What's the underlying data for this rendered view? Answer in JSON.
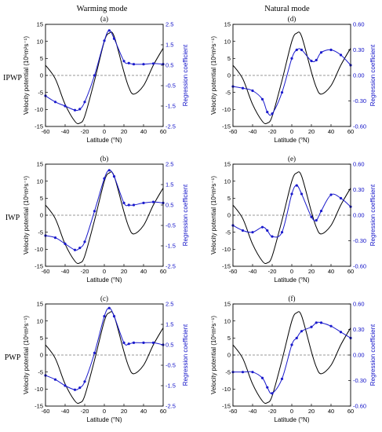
{
  "column_titles": [
    "Warming mode",
    "Natural mode"
  ],
  "row_titles": [
    "IPWP",
    "IWP",
    "PWP"
  ],
  "colors": {
    "black_series": "#000000",
    "blue_series": "#1a1acc",
    "zero_line": "#777777"
  },
  "chart_data": [
    {
      "type": "line",
      "panel_label": "(a)",
      "xlabel": "Latitude (°N)",
      "ylabel": "Velocity potential (10⁶m²s⁻¹)",
      "y2label": "Regression coefficient",
      "xlim": [
        -60,
        60
      ],
      "ylim": [
        -15,
        15
      ],
      "y2lim": [
        -2.5,
        2.5
      ],
      "xticks": [
        -60,
        -40,
        -20,
        0,
        20,
        40,
        60
      ],
      "yticks": [
        -15,
        -10,
        -5,
        0,
        5,
        10,
        15
      ],
      "y2ticks": [
        "-2.5",
        "-1.5",
        "-0.5",
        "0.5",
        "1.5",
        "2.5"
      ],
      "x": [
        -60,
        -50,
        -40,
        -30,
        -25,
        -20,
        -10,
        0,
        5,
        10,
        20,
        25,
        30,
        40,
        50,
        60
      ],
      "black": [
        3,
        -1,
        -8.5,
        -13.5,
        -14,
        -12,
        -1.5,
        10,
        12.4,
        11.5,
        1,
        -3.5,
        -5.5,
        -3,
        3,
        8
      ],
      "blue": [
        -1,
        -1.3,
        -1.5,
        -1.7,
        -1.65,
        -1.3,
        0,
        1.7,
        2.2,
        1.8,
        0.7,
        0.6,
        0.55,
        0.55,
        0.58,
        0.55
      ]
    },
    {
      "type": "line",
      "panel_label": "(d)",
      "xlabel": "Latitude (°N)",
      "ylabel": "Velocity potential (10⁶m²s⁻¹)",
      "y2label": "Regression coefficient",
      "xlim": [
        -60,
        60
      ],
      "ylim": [
        -15,
        15
      ],
      "y2lim": [
        -0.6,
        0.6
      ],
      "xticks": [
        -60,
        -40,
        -20,
        0,
        20,
        40,
        60
      ],
      "yticks": [
        -15,
        -10,
        -5,
        0,
        5,
        10,
        15
      ],
      "y2ticks": [
        "-0.60",
        "-0.30",
        "0.00",
        "0.30",
        "0.60"
      ],
      "x": [
        -60,
        -50,
        -40,
        -30,
        -25,
        -20,
        -10,
        0,
        5,
        10,
        20,
        25,
        30,
        40,
        50,
        60
      ],
      "black": [
        3,
        -1,
        -8.5,
        -13.5,
        -14,
        -12,
        -1.5,
        10,
        12.4,
        11.5,
        1,
        -3.5,
        -5.5,
        -3,
        3,
        8
      ],
      "blue": [
        -0.13,
        -0.15,
        -0.18,
        -0.28,
        -0.43,
        -0.45,
        -0.2,
        0.2,
        0.3,
        0.3,
        0.17,
        0.18,
        0.27,
        0.3,
        0.24,
        0.12
      ]
    },
    {
      "type": "line",
      "panel_label": "(b)",
      "xlabel": "Latitude (°N)",
      "ylabel": "Velocity potential (10⁶m²s⁻¹)",
      "y2label": "Regression coefficient",
      "xlim": [
        -60,
        60
      ],
      "ylim": [
        -15,
        15
      ],
      "y2lim": [
        -2.5,
        2.5
      ],
      "xticks": [
        -60,
        -40,
        -20,
        0,
        20,
        40,
        60
      ],
      "yticks": [
        -15,
        -10,
        -5,
        0,
        5,
        10,
        15
      ],
      "y2ticks": [
        "-2.5",
        "-1.5",
        "-0.5",
        "0.5",
        "1.5",
        "2.5"
      ],
      "x": [
        -60,
        -50,
        -40,
        -30,
        -25,
        -20,
        -10,
        0,
        5,
        10,
        20,
        25,
        30,
        40,
        50,
        60
      ],
      "black": [
        3,
        -1,
        -8.5,
        -13.5,
        -14,
        -12,
        -1.5,
        10,
        12.4,
        11.5,
        1,
        -3.5,
        -5.5,
        -3,
        3,
        8
      ],
      "blue": [
        -1,
        -1.1,
        -1.4,
        -1.7,
        -1.6,
        -1.3,
        0.2,
        1.8,
        2.2,
        1.9,
        0.6,
        0.5,
        0.5,
        0.6,
        0.65,
        0.6
      ]
    },
    {
      "type": "line",
      "panel_label": "(e)",
      "xlabel": "Latitude (°N)",
      "ylabel": "Velocity potential (10⁶m²s⁻¹)",
      "y2label": "Regression coefficient",
      "xlim": [
        -60,
        60
      ],
      "ylim": [
        -15,
        15
      ],
      "y2lim": [
        -0.6,
        0.6
      ],
      "xticks": [
        -60,
        -40,
        -20,
        0,
        20,
        40,
        60
      ],
      "yticks": [
        -15,
        -10,
        -5,
        0,
        5,
        10,
        15
      ],
      "y2ticks": [
        "-0.60",
        "-0.30",
        "0.00",
        "0.30",
        "0.60"
      ],
      "x": [
        -60,
        -50,
        -40,
        -30,
        -25,
        -20,
        -10,
        0,
        5,
        10,
        20,
        25,
        30,
        40,
        50,
        60
      ],
      "black": [
        3,
        -1,
        -8.5,
        -13.5,
        -14,
        -12,
        -1.5,
        10,
        12.4,
        11.5,
        1,
        -3.5,
        -5.5,
        -3,
        3,
        8
      ],
      "blue": [
        -0.12,
        -0.18,
        -0.2,
        -0.14,
        -0.18,
        -0.25,
        -0.2,
        0.25,
        0.35,
        0.25,
        -0.02,
        -0.06,
        0.05,
        0.24,
        0.2,
        0.1
      ]
    },
    {
      "type": "line",
      "panel_label": "(c)",
      "xlabel": "Latitude (°N)",
      "ylabel": "Velocity potential (10⁶m²s⁻¹)",
      "y2label": "Regression coefficient",
      "xlim": [
        -60,
        60
      ],
      "ylim": [
        -15,
        15
      ],
      "y2lim": [
        -2.5,
        2.5
      ],
      "xticks": [
        -60,
        -40,
        -20,
        0,
        20,
        40,
        60
      ],
      "yticks": [
        -15,
        -10,
        -5,
        0,
        5,
        10,
        15
      ],
      "y2ticks": [
        "-2.5",
        "-1.5",
        "-0.5",
        "0.5",
        "1.5",
        "2.5"
      ],
      "x": [
        -60,
        -50,
        -40,
        -30,
        -25,
        -20,
        -10,
        0,
        5,
        10,
        20,
        25,
        30,
        40,
        50,
        60
      ],
      "black": [
        3,
        -1,
        -8.5,
        -13.5,
        -14,
        -12,
        -1.5,
        10,
        12.4,
        11.5,
        1,
        -3.5,
        -5.5,
        -3,
        3,
        8
      ],
      "blue": [
        -1,
        -1.2,
        -1.5,
        -1.7,
        -1.6,
        -1.3,
        0.1,
        1.9,
        2.3,
        1.9,
        0.6,
        0.55,
        0.6,
        0.6,
        0.6,
        0.5
      ]
    },
    {
      "type": "line",
      "panel_label": "(f)",
      "xlabel": "Latitude (°N)",
      "ylabel": "Velocity potential (10⁶m²s⁻¹)",
      "y2label": "Regression coefficient",
      "xlim": [
        -60,
        60
      ],
      "ylim": [
        -15,
        15
      ],
      "y2lim": [
        -0.6,
        0.6
      ],
      "xticks": [
        -60,
        -40,
        -20,
        0,
        20,
        40,
        60
      ],
      "yticks": [
        -15,
        -10,
        -5,
        0,
        5,
        10,
        15
      ],
      "y2ticks": [
        "-0.60",
        "-0.30",
        "0.00",
        "0.30",
        "0.60"
      ],
      "x": [
        -60,
        -50,
        -40,
        -30,
        -25,
        -20,
        -10,
        0,
        5,
        10,
        20,
        25,
        30,
        40,
        50,
        60
      ],
      "black": [
        3,
        -1,
        -8.5,
        -13.5,
        -14,
        -12,
        -1.5,
        10,
        12.4,
        11.5,
        1,
        -3.5,
        -5.5,
        -3,
        3,
        8
      ],
      "blue": [
        -0.2,
        -0.2,
        -0.2,
        -0.27,
        -0.38,
        -0.45,
        -0.28,
        0.12,
        0.2,
        0.28,
        0.33,
        0.38,
        0.38,
        0.34,
        0.27,
        0.2
      ]
    }
  ]
}
